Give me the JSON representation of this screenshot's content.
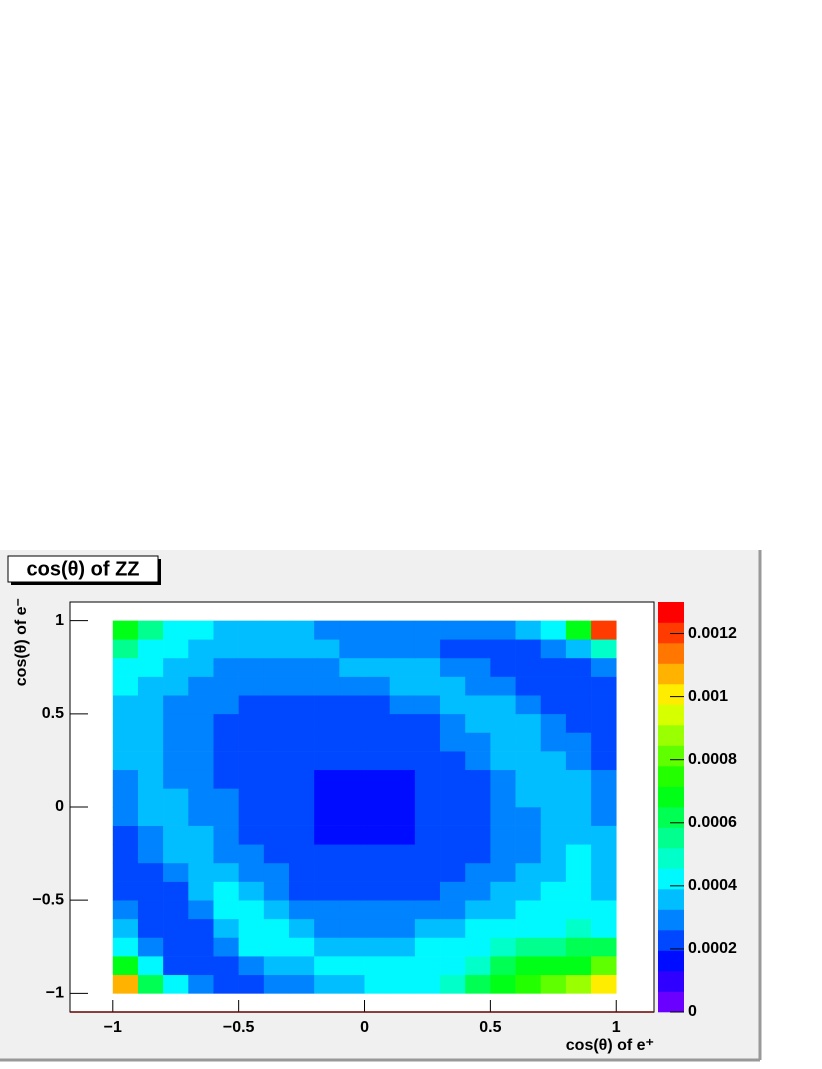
{
  "chart_data": {
    "type": "heatmap",
    "title": "cos(θ) of ZZ",
    "x_label": "cos(θ) of e⁺",
    "y_label": "cos(θ) of e⁻",
    "xbins": [
      -1,
      -0.9,
      -0.8,
      -0.7,
      -0.6,
      -0.5,
      -0.4,
      -0.3,
      -0.2,
      -0.1,
      0,
      0.1,
      0.2,
      0.3,
      0.4,
      0.5,
      0.6,
      0.7,
      0.8,
      0.9,
      1
    ],
    "ybins": [
      -1,
      -0.9,
      -0.8,
      -0.7,
      -0.6,
      -0.5,
      -0.4,
      -0.3,
      -0.2,
      -0.1,
      0,
      0.1,
      0.2,
      0.3,
      0.4,
      0.5,
      0.6,
      0.7,
      0.8,
      0.9,
      1
    ],
    "z": [
      [
        0.0011,
        0.0006,
        0.0004,
        0.0003,
        0.00025,
        0.00025,
        0.0003,
        0.0003,
        0.00035,
        0.00035,
        0.0004,
        0.0004,
        0.00045,
        0.0005,
        0.0006,
        0.0007,
        0.00075,
        0.0008,
        0.0009,
        0.001
      ],
      [
        0.0007,
        0.0004,
        0.00025,
        0.0002,
        0.00025,
        0.0003,
        0.00035,
        0.00035,
        0.0004,
        0.0004,
        0.0004,
        0.0004,
        0.00045,
        0.00045,
        0.0005,
        0.0006,
        0.00065,
        0.0007,
        0.0007,
        0.0008
      ],
      [
        0.00045,
        0.0003,
        0.0002,
        0.0002,
        0.0003,
        0.0004,
        0.0004,
        0.0004,
        0.00035,
        0.00035,
        0.00035,
        0.00035,
        0.0004,
        0.0004,
        0.00045,
        0.0005,
        0.00055,
        0.00055,
        0.0006,
        0.0006
      ],
      [
        0.00035,
        0.00025,
        0.0002,
        0.00025,
        0.00035,
        0.0004,
        0.0004,
        0.00035,
        0.0003,
        0.0003,
        0.0003,
        0.0003,
        0.00035,
        0.00035,
        0.0004,
        0.00045,
        0.00045,
        0.00045,
        0.0005,
        0.00045
      ],
      [
        0.0003,
        0.0002,
        0.0002,
        0.0003,
        0.0004,
        0.0004,
        0.00035,
        0.0003,
        0.00028,
        0.00028,
        0.00028,
        0.00028,
        0.0003,
        0.0003,
        0.00035,
        0.00038,
        0.0004,
        0.00042,
        0.00045,
        0.0004
      ],
      [
        0.00025,
        0.0002,
        0.00025,
        0.00035,
        0.0004,
        0.00035,
        0.0003,
        0.00026,
        0.00024,
        0.00024,
        0.00024,
        0.00024,
        0.00026,
        0.00028,
        0.0003,
        0.00033,
        0.00036,
        0.0004,
        0.00042,
        0.00038
      ],
      [
        0.00022,
        0.00022,
        0.0003,
        0.00038,
        0.00036,
        0.0003,
        0.00027,
        0.00024,
        0.00022,
        0.00022,
        0.00022,
        0.00022,
        0.00024,
        0.00026,
        0.00028,
        0.0003,
        0.00033,
        0.00036,
        0.0004,
        0.00036
      ],
      [
        0.00022,
        0.00028,
        0.00035,
        0.00036,
        0.00032,
        0.00028,
        0.00025,
        0.00022,
        0.0002,
        0.0002,
        0.0002,
        0.0002,
        0.00022,
        0.00024,
        0.00026,
        0.00028,
        0.00032,
        0.00035,
        0.0004,
        0.00035
      ],
      [
        0.00025,
        0.00032,
        0.00036,
        0.00033,
        0.0003,
        0.00026,
        0.00023,
        0.00021,
        0.00019,
        0.00019,
        0.00019,
        0.00019,
        0.00021,
        0.00023,
        0.00025,
        0.00028,
        0.00031,
        0.00035,
        0.00038,
        0.00034
      ],
      [
        0.00028,
        0.00035,
        0.00035,
        0.00031,
        0.00028,
        0.00025,
        0.00022,
        0.0002,
        0.00018,
        0.00018,
        0.00018,
        0.00018,
        0.0002,
        0.00022,
        0.00024,
        0.00027,
        0.00031,
        0.00036,
        0.00038,
        0.00032
      ],
      [
        0.0003,
        0.00036,
        0.00033,
        0.0003,
        0.00027,
        0.00024,
        0.00022,
        0.0002,
        0.00018,
        0.00018,
        0.00018,
        0.00018,
        0.0002,
        0.00022,
        0.00025,
        0.00028,
        0.00033,
        0.00037,
        0.00036,
        0.0003
      ],
      [
        0.00032,
        0.00036,
        0.00032,
        0.00029,
        0.00026,
        0.00024,
        0.00022,
        0.0002,
        0.00019,
        0.00019,
        0.00019,
        0.00019,
        0.00021,
        0.00023,
        0.00026,
        0.0003,
        0.00035,
        0.00037,
        0.00033,
        0.00028
      ],
      [
        0.00034,
        0.00036,
        0.00031,
        0.00028,
        0.00026,
        0.00024,
        0.00022,
        0.0002,
        0.0002,
        0.0002,
        0.0002,
        0.0002,
        0.00022,
        0.00025,
        0.00028,
        0.00033,
        0.00037,
        0.00035,
        0.0003,
        0.00026
      ],
      [
        0.00035,
        0.00035,
        0.00031,
        0.00028,
        0.00026,
        0.00024,
        0.00022,
        0.00021,
        0.00021,
        0.00021,
        0.00021,
        0.00022,
        0.00024,
        0.00027,
        0.00031,
        0.00036,
        0.00036,
        0.00032,
        0.00027,
        0.00024
      ],
      [
        0.00036,
        0.00035,
        0.00031,
        0.00028,
        0.00026,
        0.00024,
        0.00023,
        0.00022,
        0.00022,
        0.00022,
        0.00023,
        0.00024,
        0.00026,
        0.0003,
        0.00035,
        0.00037,
        0.00033,
        0.00028,
        0.00024,
        0.00022
      ],
      [
        0.00038,
        0.00036,
        0.00032,
        0.00029,
        0.00027,
        0.00025,
        0.00024,
        0.00024,
        0.00024,
        0.00025,
        0.00026,
        0.00028,
        0.00031,
        0.00035,
        0.00037,
        0.00033,
        0.00028,
        0.00024,
        0.00022,
        0.00022
      ],
      [
        0.0004,
        0.00037,
        0.00034,
        0.00031,
        0.00029,
        0.00028,
        0.00027,
        0.00027,
        0.00028,
        0.00029,
        0.0003,
        0.00033,
        0.00036,
        0.00036,
        0.00032,
        0.00027,
        0.00024,
        0.00022,
        0.00022,
        0.00024
      ],
      [
        0.00045,
        0.0004,
        0.00037,
        0.00034,
        0.00032,
        0.00031,
        0.00031,
        0.00031,
        0.00032,
        0.00033,
        0.00034,
        0.00035,
        0.00034,
        0.0003,
        0.00027,
        0.00024,
        0.00022,
        0.00022,
        0.00025,
        0.0003
      ],
      [
        0.00055,
        0.00045,
        0.0004,
        0.00037,
        0.00035,
        0.00034,
        0.00034,
        0.00034,
        0.00033,
        0.00032,
        0.00031,
        0.0003,
        0.00028,
        0.00026,
        0.00025,
        0.00024,
        0.00025,
        0.00028,
        0.00035,
        0.0005
      ],
      [
        0.0007,
        0.00055,
        0.00045,
        0.0004,
        0.00038,
        0.00036,
        0.00035,
        0.00034,
        0.00032,
        0.0003,
        0.00028,
        0.00027,
        0.00027,
        0.00027,
        0.00028,
        0.0003,
        0.00035,
        0.00045,
        0.0007,
        0.0012
      ]
    ],
    "xlim": [
      -1.17,
      1.15
    ],
    "ylim": [
      -1.1,
      1.1
    ],
    "zlim": [
      0,
      0.0013
    ],
    "xticks": [
      {
        "value": -1,
        "label": "−1"
      },
      {
        "value": -0.5,
        "label": "−0.5"
      },
      0,
      0.5,
      1
    ],
    "yticks": [
      {
        "value": -1,
        "label": "−1"
      },
      {
        "value": -0.5,
        "label": "−0.5"
      },
      0,
      0.5,
      1
    ],
    "zticks": [
      0,
      0.0002,
      0.0004,
      0.0006,
      0.0008,
      0.001,
      0.0012
    ]
  }
}
